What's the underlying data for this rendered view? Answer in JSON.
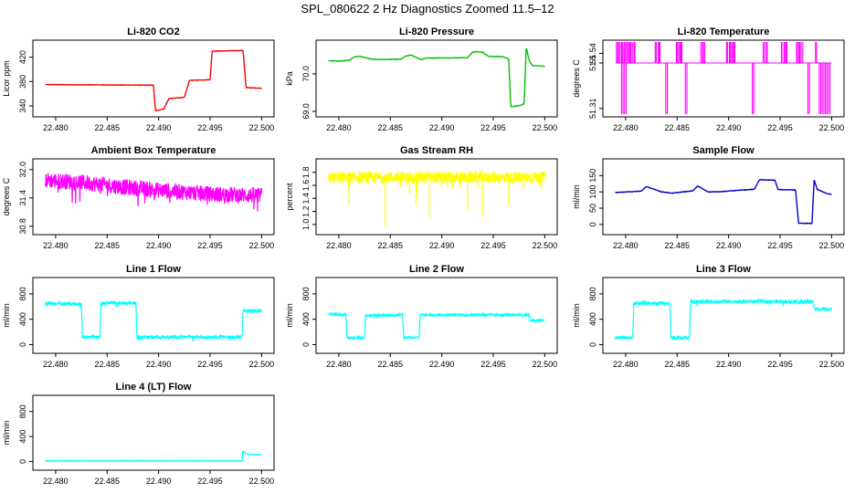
{
  "figure": {
    "title": "SPL_080622  2 Hz Diagnostics Zoomed 11.5–12"
  },
  "chart_data": [
    {
      "type": "line",
      "title": "Li-820 CO2",
      "ylabel": "Licor ppm",
      "color": "#ff0000",
      "x": [
        22.479,
        22.4895,
        22.4897,
        22.4905,
        22.491,
        22.4925,
        22.493,
        22.495,
        22.4952,
        22.4982,
        22.4985,
        22.5
      ],
      "y": [
        375,
        374,
        332,
        335,
        352,
        354,
        382,
        383,
        430,
        431,
        370,
        369
      ],
      "xticks": [
        "22.480",
        "22.485",
        "22.490",
        "22.495",
        "22.500"
      ],
      "xtick_values": [
        22.48,
        22.485,
        22.49,
        22.495,
        22.5
      ],
      "xlim": [
        22.4785,
        22.5005
      ],
      "yticks": [
        "340",
        "380",
        "420"
      ],
      "ytick_values": [
        340,
        380,
        420
      ],
      "ylim": [
        328,
        442
      ]
    },
    {
      "type": "line",
      "title": "Li-820 Pressure",
      "ylabel": "kPa",
      "color": "#00c000",
      "x": [
        22.479,
        22.48,
        22.481,
        22.4815,
        22.482,
        22.483,
        22.4835,
        22.486,
        22.4865,
        22.487,
        22.488,
        22.4885,
        22.4925,
        22.493,
        22.4935,
        22.494,
        22.4945,
        22.4955,
        22.496,
        22.4965,
        22.4967,
        22.4975,
        22.498,
        22.4982,
        22.4985,
        22.4988,
        22.5
      ],
      "y": [
        70.35,
        70.34,
        70.36,
        70.45,
        70.47,
        70.4,
        70.38,
        70.39,
        70.47,
        70.5,
        70.38,
        70.42,
        70.43,
        70.58,
        70.59,
        70.57,
        70.47,
        70.46,
        70.45,
        70.4,
        69.12,
        69.15,
        69.2,
        70.7,
        70.35,
        70.22,
        70.2
      ],
      "xticks": [
        "22.480",
        "22.485",
        "22.490",
        "22.495",
        "22.500"
      ],
      "xtick_values": [
        22.48,
        22.485,
        22.49,
        22.495,
        22.5
      ],
      "xlim": [
        22.4785,
        22.5005
      ],
      "yticks": [
        "69.0",
        "70.0"
      ],
      "ytick_values": [
        69.0,
        70.0
      ],
      "ylim": [
        68.95,
        70.8
      ]
    },
    {
      "type": "line",
      "title": "Li-820 Temperature",
      "ylabel": "degrees C",
      "color": "#ff00ff",
      "series_style": "toggle",
      "base": 51.5,
      "spike_high": 51.54,
      "spike_low": 51.31,
      "high_regions": [
        [
          22.4791,
          22.4809
        ],
        [
          22.4829,
          22.4834
        ],
        [
          22.4849,
          22.4856
        ],
        [
          22.4873,
          22.4877
        ],
        [
          22.4898,
          22.4907
        ],
        [
          22.4934,
          22.4938
        ],
        [
          22.4951,
          22.4958
        ],
        [
          22.4966,
          22.4972
        ],
        [
          22.4984,
          22.4986
        ]
      ],
      "low_regions": [
        [
          22.4796,
          22.4801
        ],
        [
          22.4839,
          22.4841
        ],
        [
          22.4858,
          22.4861
        ],
        [
          22.4923,
          22.4926
        ],
        [
          22.4977,
          22.4979
        ],
        [
          22.4988,
          22.4999
        ]
      ],
      "xticks": [
        "22.480",
        "22.485",
        "22.490",
        "22.495",
        "22.500"
      ],
      "xtick_values": [
        22.48,
        22.485,
        22.49,
        22.495,
        22.5
      ],
      "xlim": [
        22.4785,
        22.5005
      ],
      "yticks": [
        "51.31",
        "51.5",
        "51.54"
      ],
      "ytick_values": [
        51.31,
        51.5,
        51.54
      ],
      "ylim": [
        51.29,
        51.58
      ]
    },
    {
      "type": "line",
      "title": "Ambient Box Temperature",
      "ylabel": "degrees C",
      "color": "#ff00ff",
      "series_style": "noisy",
      "x": [
        22.479,
        22.483,
        22.487,
        22.491,
        22.495,
        22.5
      ],
      "y": [
        31.78,
        31.72,
        31.62,
        31.55,
        31.48,
        31.45
      ],
      "noise": 0.17,
      "xticks": [
        "22.480",
        "22.485",
        "22.490",
        "22.495",
        "22.500"
      ],
      "xtick_values": [
        22.48,
        22.485,
        22.49,
        22.495,
        22.5
      ],
      "xlim": [
        22.4785,
        22.5005
      ],
      "yticks": [
        "30.8",
        "31.4",
        "32.0"
      ],
      "ytick_values": [
        30.8,
        31.4,
        32.0
      ],
      "ylim": [
        30.7,
        32.15
      ]
    },
    {
      "type": "line",
      "title": "Gas Stream RH",
      "ylabel": "percent",
      "color": "#ffff00",
      "series_style": "noisy",
      "x": [
        22.479,
        22.5
      ],
      "y": [
        1.72,
        1.72
      ],
      "noise": 0.09,
      "dips": [
        [
          22.4845,
          0.95
        ],
        [
          22.4888,
          1.1
        ],
        [
          22.4875,
          1.3
        ],
        [
          22.4925,
          1.2
        ],
        [
          22.494,
          1.12
        ],
        [
          22.481,
          1.3
        ],
        [
          22.4965,
          1.3
        ]
      ],
      "xticks": [
        "22.480",
        "22.485",
        "22.490",
        "22.495",
        "22.500"
      ],
      "xtick_values": [
        22.48,
        22.485,
        22.49,
        22.495,
        22.5
      ],
      "xlim": [
        22.4785,
        22.5005
      ],
      "yticks": [
        "1.0",
        "1.2",
        "1.4",
        "1.6",
        "1.8"
      ],
      "ytick_values": [
        1.0,
        1.2,
        1.4,
        1.6,
        1.8
      ],
      "ylim": [
        0.9,
        1.95
      ]
    },
    {
      "type": "line",
      "title": "Sample Flow",
      "ylabel": "ml/min",
      "color": "#0000cc",
      "x": [
        22.479,
        22.4815,
        22.482,
        22.4835,
        22.4845,
        22.4865,
        22.487,
        22.488,
        22.489,
        22.4915,
        22.4925,
        22.493,
        22.4945,
        22.4948,
        22.4965,
        22.4968,
        22.4981,
        22.4983,
        22.4986,
        22.4995,
        22.5
      ],
      "y": [
        98,
        102,
        116,
        100,
        96,
        103,
        118,
        100,
        100,
        106,
        108,
        137,
        136,
        107,
        106,
        4,
        3,
        138,
        108,
        95,
        92
      ],
      "xticks": [
        "22.480",
        "22.485",
        "22.490",
        "22.495",
        "22.500"
      ],
      "xtick_values": [
        22.48,
        22.485,
        22.49,
        22.495,
        22.5
      ],
      "xlim": [
        22.4785,
        22.5005
      ],
      "yticks": [
        "0",
        "50",
        "100",
        "150"
      ],
      "ytick_values": [
        0,
        50,
        100,
        150
      ],
      "ylim": [
        -20,
        190
      ]
    },
    {
      "type": "line",
      "title": "Line 1 Flow",
      "ylabel": "ml/min",
      "color": "#00ffff",
      "series_style": "noisy",
      "x": [
        22.479,
        22.4825,
        22.4826,
        22.4843,
        22.4844,
        22.4878,
        22.4879,
        22.4981,
        22.4982,
        22.5
      ],
      "y": [
        650,
        640,
        120,
        120,
        660,
        650,
        120,
        120,
        530,
        530
      ],
      "noise": 25,
      "xticks": [
        "22.480",
        "22.485",
        "22.490",
        "22.495",
        "22.500"
      ],
      "xtick_values": [
        22.48,
        22.485,
        22.49,
        22.495,
        22.5
      ],
      "xlim": [
        22.4785,
        22.5005
      ],
      "yticks": [
        "0",
        "400",
        "800"
      ],
      "ytick_values": [
        0,
        400,
        800
      ],
      "ylim": [
        -80,
        1000
      ]
    },
    {
      "type": "line",
      "title": "Line 2 Flow",
      "ylabel": "ml/min",
      "color": "#00ffff",
      "series_style": "noisy",
      "x": [
        22.479,
        22.4807,
        22.4808,
        22.4825,
        22.4826,
        22.4862,
        22.4863,
        22.4878,
        22.4879,
        22.4985,
        22.4986,
        22.5
      ],
      "y": [
        480,
        470,
        110,
        110,
        460,
        470,
        110,
        110,
        470,
        470,
        380,
        380
      ],
      "noise": 18,
      "xticks": [
        "22.480",
        "22.485",
        "22.490",
        "22.495",
        "22.500"
      ],
      "xtick_values": [
        22.48,
        22.485,
        22.49,
        22.495,
        22.5
      ],
      "xlim": [
        22.4785,
        22.5005
      ],
      "yticks": [
        "0",
        "400",
        "800"
      ],
      "ytick_values": [
        0,
        400,
        800
      ],
      "ylim": [
        -80,
        1000
      ]
    },
    {
      "type": "line",
      "title": "Line 3 Flow",
      "ylabel": "ml/min",
      "color": "#00ffff",
      "series_style": "noisy",
      "x": [
        22.479,
        22.4807,
        22.4808,
        22.4843,
        22.4844,
        22.4862,
        22.4863,
        22.4982,
        22.4983,
        22.5
      ],
      "y": [
        110,
        110,
        650,
        650,
        110,
        110,
        680,
        680,
        560,
        560
      ],
      "noise": 25,
      "xticks": [
        "22.480",
        "22.485",
        "22.490",
        "22.495",
        "22.500"
      ],
      "xtick_values": [
        22.48,
        22.485,
        22.49,
        22.495,
        22.5
      ],
      "xlim": [
        22.4785,
        22.5005
      ],
      "yticks": [
        "0",
        "400",
        "800"
      ],
      "ytick_values": [
        0,
        400,
        800
      ],
      "ylim": [
        -80,
        1000
      ]
    },
    {
      "type": "line",
      "title": "Line 4 (LT) Flow",
      "ylabel": "ml/min",
      "color": "#00ffff",
      "x": [
        22.479,
        22.4981,
        22.4982,
        22.4985,
        22.5
      ],
      "y": [
        10,
        10,
        170,
        120,
        110
      ],
      "xticks": [
        "22.480",
        "22.485",
        "22.490",
        "22.495",
        "22.500"
      ],
      "xtick_values": [
        22.48,
        22.485,
        22.49,
        22.495,
        22.5
      ],
      "xlim": [
        22.4785,
        22.5005
      ],
      "yticks": [
        "0",
        "400",
        "800"
      ],
      "ytick_values": [
        0,
        400,
        800
      ],
      "ylim": [
        -80,
        1000
      ]
    }
  ]
}
